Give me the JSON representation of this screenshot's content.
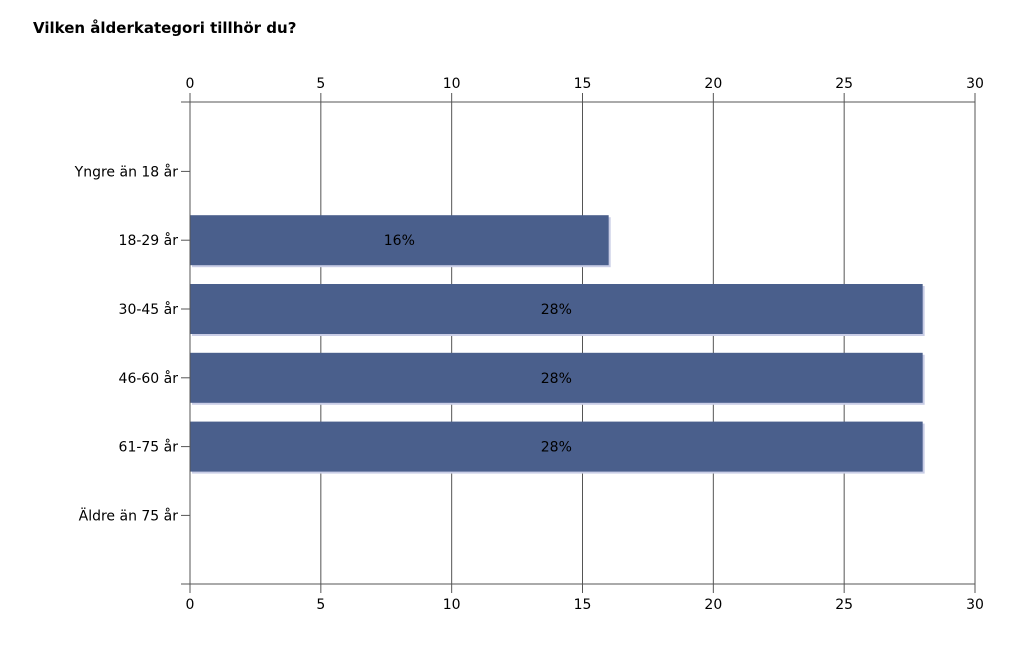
{
  "chart_data": {
    "type": "bar",
    "orientation": "horizontal",
    "title": "Vilken ålderkategori tillhör du?",
    "categories": [
      "Yngre än 18 år",
      "18-29 år",
      "30-45 år",
      "46-60 år",
      "61-75 år",
      "Äldre än 75 år"
    ],
    "values": [
      0,
      16,
      28,
      28,
      28,
      0
    ],
    "data_labels": [
      "",
      "16%",
      "28%",
      "28%",
      "28%",
      ""
    ],
    "xlim": [
      0,
      30
    ],
    "xticks": [
      0,
      5,
      10,
      15,
      20,
      25,
      30
    ],
    "axis_positions": [
      "top",
      "bottom"
    ],
    "grid": true,
    "bar_color": "#4a5f8c"
  }
}
